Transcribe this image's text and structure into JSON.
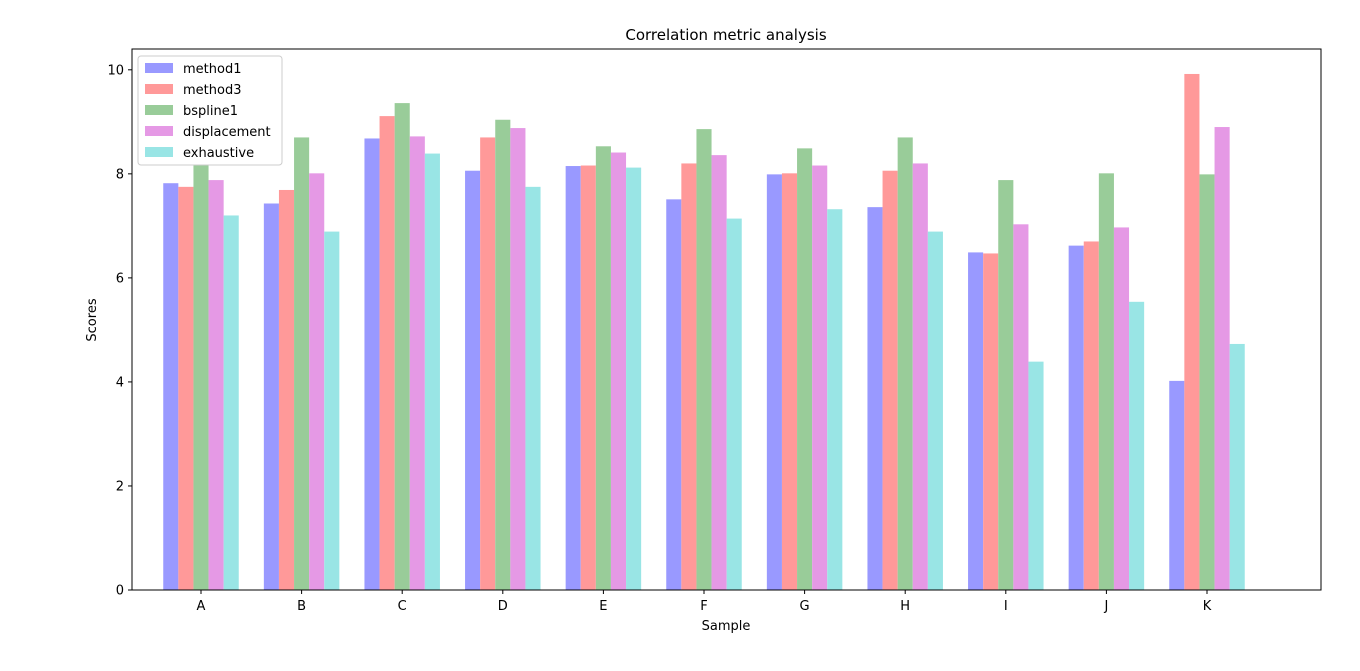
{
  "chart_data": {
    "type": "bar",
    "title": "Correlation metric analysis",
    "xlabel": "Sample",
    "ylabel": "Scores",
    "ylim": [
      0,
      10.4
    ],
    "yticks": [
      0,
      2,
      4,
      6,
      8,
      10
    ],
    "categories": [
      "A",
      "B",
      "C",
      "D",
      "E",
      "F",
      "G",
      "H",
      "I",
      "J",
      "K"
    ],
    "legend_position": "top-left",
    "grid": false,
    "series": [
      {
        "name": "method1",
        "color": "#9999ff",
        "values": [
          7.82,
          7.43,
          8.68,
          8.06,
          8.15,
          7.51,
          7.99,
          7.36,
          6.49,
          6.62,
          4.02
        ]
      },
      {
        "name": "method3",
        "color": "#ff9999",
        "values": [
          7.75,
          7.69,
          9.11,
          8.7,
          8.16,
          8.2,
          8.01,
          8.06,
          6.47,
          6.7,
          9.92
        ]
      },
      {
        "name": "bspline1",
        "color": "#99cc99",
        "values": [
          8.18,
          8.7,
          9.36,
          9.04,
          8.53,
          8.86,
          8.49,
          8.7,
          7.88,
          8.01,
          7.99
        ]
      },
      {
        "name": "displacement",
        "color": "#e599e5",
        "values": [
          7.88,
          8.01,
          8.72,
          8.88,
          8.41,
          8.36,
          8.16,
          8.2,
          7.03,
          6.97,
          8.9
        ]
      },
      {
        "name": "exhaustive",
        "color": "#99e5e5",
        "values": [
          7.2,
          6.89,
          8.39,
          7.75,
          8.12,
          7.14,
          7.32,
          6.89,
          4.39,
          5.54,
          4.73
        ]
      }
    ]
  }
}
